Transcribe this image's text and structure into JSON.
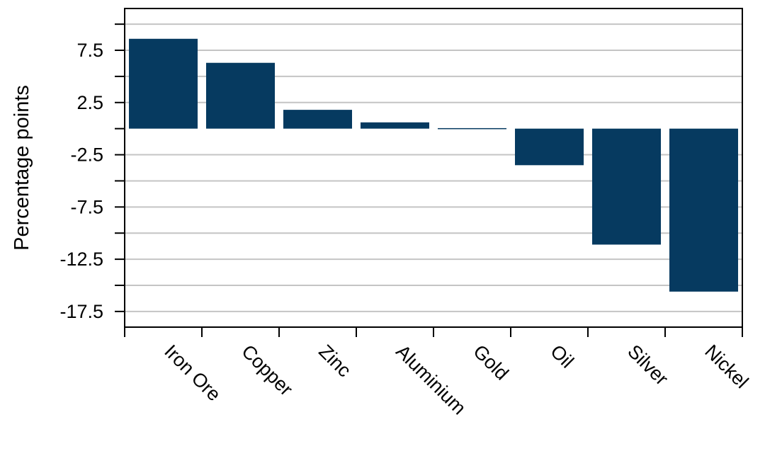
{
  "chart_data": {
    "type": "bar",
    "categories": [
      "Iron Ore",
      "Copper",
      "Zinc",
      "Aluminium",
      "Gold",
      "Oil",
      "Silver",
      "Nickel"
    ],
    "values": [
      8.6,
      6.3,
      1.8,
      0.6,
      0.05,
      -3.5,
      -11.1,
      -15.6
    ],
    "title": "",
    "xlabel": "",
    "ylabel": "Percentage points",
    "ylim": [
      -19,
      11.5
    ],
    "yticks": [
      7.5,
      2.5,
      -2.5,
      -7.5,
      -12.5,
      -17.5
    ],
    "ytick_labels": [
      "7.5",
      "2.5",
      "-2.5",
      "-7.5",
      "-12.5",
      "-17.5"
    ],
    "grid": true,
    "legend": "none",
    "colors": {
      "bar": "#063a60",
      "grid": "#c4c4c4",
      "axis": "#000000"
    }
  }
}
